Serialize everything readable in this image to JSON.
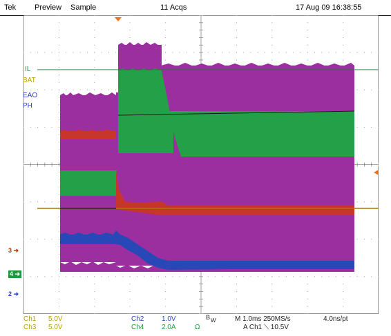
{
  "header": {
    "brand": "Tek",
    "state": "Preview",
    "acq_mode": "Sample",
    "acq_count": "11 Acqs",
    "datetime": "17 Aug 09 16:38:55"
  },
  "trace_labels": {
    "il": "IL",
    "bat": "BAT",
    "eao": "EAO",
    "ph": "PH"
  },
  "markers": {
    "ref3": "3",
    "ref4": "4",
    "ref2": "2"
  },
  "footer": {
    "ch1_label": "Ch1",
    "ch1_scale": "5.0V",
    "ch3_label": "Ch3",
    "ch3_scale": "5.0V",
    "ch2_label": "Ch2",
    "ch2_scale": "1.0V",
    "ch4_label": "Ch4",
    "ch4_scale": "2.0A",
    "ch4_unit": "Ω",
    "bw_b": "B",
    "bw_w": "W",
    "timebase": "M 1.0ms 250MS/s",
    "sample_interval": "4.0ns/pt",
    "trigger": "A  Ch1  ⟍  10.5V"
  },
  "colors": {
    "magenta": "#9b2f9f",
    "green": "#23a048",
    "red": "#c8352a",
    "blue": "#2848b8",
    "olive_trigger": "#a07a00",
    "orange_marker": "#f07020"
  }
}
